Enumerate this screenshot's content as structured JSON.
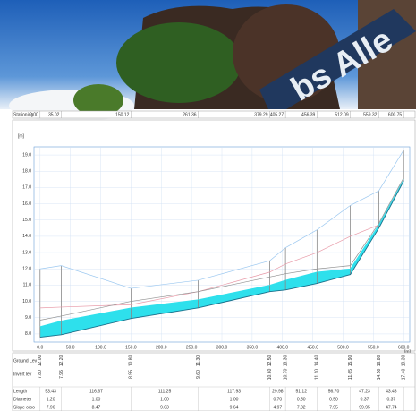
{
  "photo": {
    "sign_text": "bs Alle"
  },
  "stationing": {
    "label": "Stationing",
    "values": [
      "0.00",
      "35.02",
      "150.12",
      "261.36",
      "379.29",
      "405.27",
      "456.39",
      "512.09",
      "559.32",
      "600.75"
    ]
  },
  "chart_data": {
    "type": "line",
    "x_unit": "[m]",
    "y_unit": "[m]",
    "x": [
      0,
      35,
      150,
      261,
      379,
      405,
      457,
      512,
      559,
      600
    ],
    "xlim": [
      -10,
      610
    ],
    "ylim": [
      7.5,
      19.5
    ],
    "xticks": [
      {
        "value": 0,
        "label": "0.0"
      },
      {
        "value": 50,
        "label": "50.0"
      },
      {
        "value": 100,
        "label": "100.0"
      },
      {
        "value": 150,
        "label": "150.0"
      },
      {
        "value": 200,
        "label": "200.0"
      },
      {
        "value": 250,
        "label": "250.0"
      },
      {
        "value": 300,
        "label": "300.0"
      },
      {
        "value": 350,
        "label": "350.0"
      },
      {
        "value": 400,
        "label": "400.0"
      },
      {
        "value": 450,
        "label": "450.0"
      },
      {
        "value": 500,
        "label": "500.0"
      },
      {
        "value": 550,
        "label": "550.0"
      },
      {
        "value": 600,
        "label": "600.0"
      }
    ],
    "yticks": [
      {
        "value": 8,
        "label": "8.0"
      },
      {
        "value": 9,
        "label": "9.0"
      },
      {
        "value": 10,
        "label": "10.0"
      },
      {
        "value": 11,
        "label": "11.0"
      },
      {
        "value": 12,
        "label": "12.0"
      },
      {
        "value": 13,
        "label": "13.0"
      },
      {
        "value": 14,
        "label": "14.0"
      },
      {
        "value": 15,
        "label": "15.0"
      },
      {
        "value": 16,
        "label": "16.0"
      },
      {
        "value": 17,
        "label": "17.0"
      },
      {
        "value": 18,
        "label": "18.0"
      },
      {
        "value": 19,
        "label": "19.0"
      }
    ],
    "grid": true,
    "series": [
      {
        "color": "#9cc8f0",
        "values": [
          12.0,
          12.2,
          10.8,
          11.3,
          12.5,
          13.3,
          14.4,
          15.9,
          16.8,
          19.3
        ],
        "value_labels": [
          "12.00",
          "12.20",
          "10.80",
          "11.30",
          "12.50",
          "13.30",
          "14.40",
          "15.90",
          "16.80",
          "19.30"
        ]
      },
      {
        "color": "#e89aa8",
        "values": [
          9.6,
          9.65,
          9.8,
          10.6,
          11.8,
          12.3,
          13.0,
          14.0,
          14.7,
          17.5
        ]
      },
      {
        "color": "#909090",
        "values": [
          8.85,
          9.1,
          10.0,
          10.6,
          11.5,
          11.7,
          12.0,
          12.2,
          14.8,
          17.6
        ]
      },
      {
        "color": "#2ee0ec",
        "values": [
          8.45,
          8.8,
          9.6,
          10.1,
          11.0,
          11.3,
          11.8,
          12.0,
          14.7,
          17.5
        ]
      },
      {
        "color": "#1a6f8a",
        "values": [
          7.8,
          7.95,
          8.95,
          9.6,
          10.6,
          10.7,
          11.1,
          11.65,
          14.5,
          17.4
        ],
        "value_labels": [
          "7.80",
          "7.95",
          "8.95",
          "9.60",
          "10.60",
          "10.70",
          "11.10",
          "11.65",
          "14.50",
          "17.40"
        ]
      }
    ]
  },
  "table": {
    "row_labels": [
      "Ground Lev",
      "Invert lev",
      "Length",
      "Diameter",
      "Slope o/oo"
    ],
    "rows": [
      [
        "53.43",
        "116.67",
        "111.25",
        "117.93",
        "29.98",
        "51.12",
        "56.70",
        "47.23",
        "43.43"
      ],
      [
        "1.20",
        "1.00",
        "1.00",
        "1.00",
        "0.70",
        "0.50",
        "0.50",
        "0.37",
        "0.37"
      ],
      [
        "7.96",
        "8.47",
        "9.03",
        "9.64",
        "4.97",
        "7.82",
        "7.95",
        "99.95",
        "47.74"
      ]
    ]
  }
}
